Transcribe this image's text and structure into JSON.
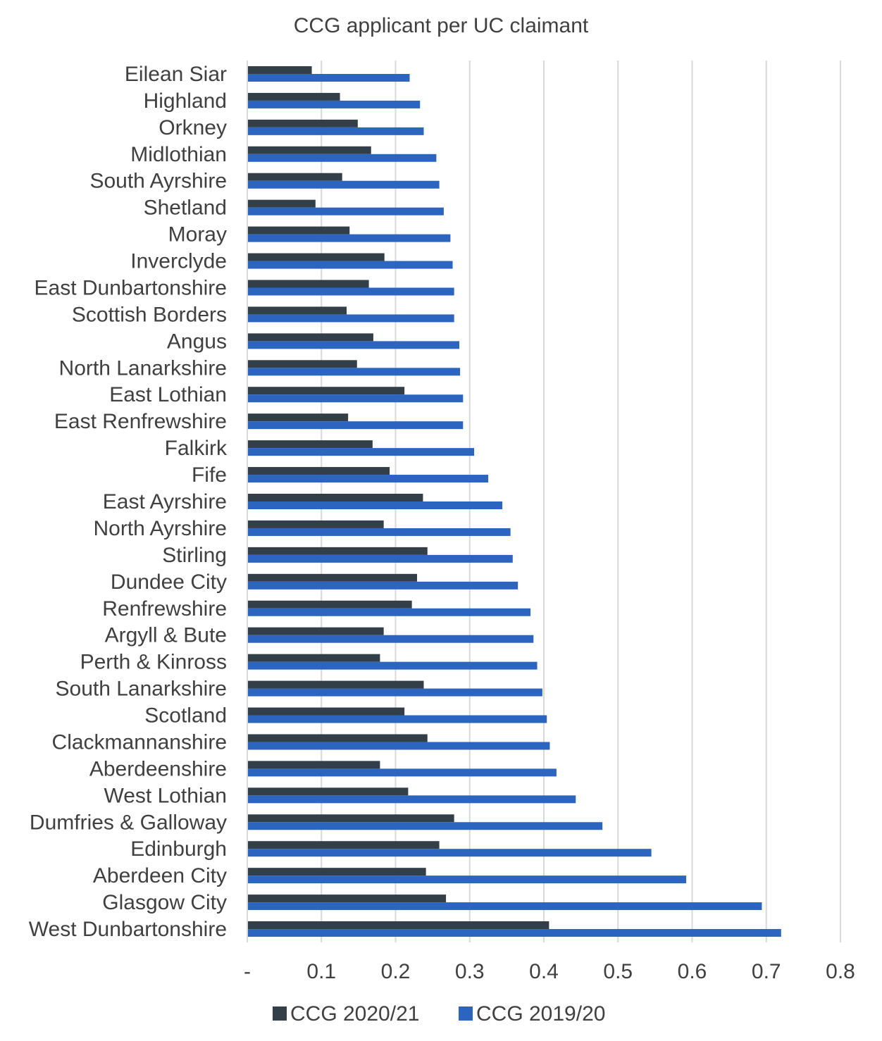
{
  "chart_data": {
    "type": "bar",
    "orientation": "horizontal",
    "title": "CCG applicant per UC claimant",
    "xlabel": "",
    "ylabel": "",
    "xlim": [
      0,
      0.8
    ],
    "x_ticks": [
      "-",
      "0.1",
      "0.2",
      "0.3",
      "0.4",
      "0.5",
      "0.6",
      "0.7",
      "0.8"
    ],
    "grid": "vertical",
    "legend_position": "bottom",
    "categories": [
      "Eilean Siar",
      "Highland",
      "Orkney",
      "Midlothian",
      "South Ayrshire",
      "Shetland",
      "Moray",
      "Inverclyde",
      "East Dunbartonshire",
      "Scottish Borders",
      "Angus",
      "North Lanarkshire",
      "East Lothian",
      "East Renfrewshire",
      "Falkirk",
      "Fife",
      "East Ayrshire",
      "North Ayrshire",
      "Stirling",
      "Dundee City",
      "Renfrewshire",
      "Argyll & Bute",
      "Perth & Kinross",
      "South Lanarkshire",
      "Scotland",
      "Clackmannanshire",
      "Aberdeenshire",
      "West Lothian",
      "Dumfries & Galloway",
      "Edinburgh",
      "Aberdeen City",
      "Glasgow City",
      "West Dunbartonshire"
    ],
    "series": [
      {
        "name": "CCG 2020/21",
        "color": "#333f48",
        "values": [
          0.087,
          0.125,
          0.149,
          0.167,
          0.128,
          0.092,
          0.138,
          0.185,
          0.164,
          0.134,
          0.17,
          0.148,
          0.212,
          0.136,
          0.169,
          0.192,
          0.237,
          0.184,
          0.243,
          0.229,
          0.222,
          0.184,
          0.179,
          0.238,
          0.212,
          0.243,
          0.179,
          0.217,
          0.279,
          0.259,
          0.241,
          0.268,
          0.407
        ]
      },
      {
        "name": "CCG 2019/20",
        "color": "#2b65c0",
        "values": [
          0.219,
          0.233,
          0.238,
          0.255,
          0.259,
          0.265,
          0.274,
          0.277,
          0.279,
          0.279,
          0.286,
          0.287,
          0.291,
          0.291,
          0.306,
          0.325,
          0.344,
          0.355,
          0.358,
          0.365,
          0.382,
          0.386,
          0.391,
          0.398,
          0.404,
          0.408,
          0.417,
          0.443,
          0.479,
          0.545,
          0.592,
          0.694,
          0.72
        ]
      }
    ]
  }
}
